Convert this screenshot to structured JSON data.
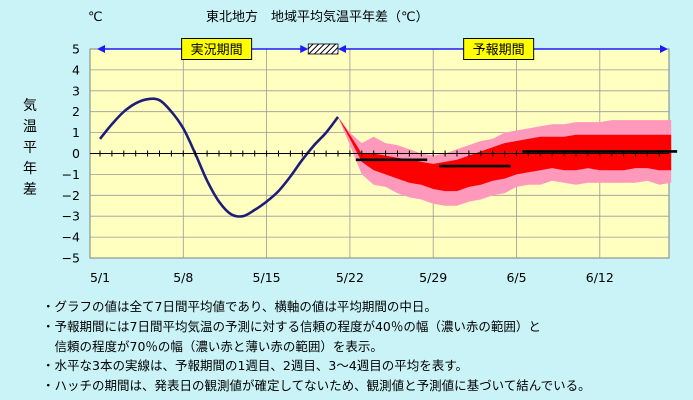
{
  "chart_data": {
    "type": "line",
    "title": "東北地方　地域平均気温平年差（℃）",
    "unit_label": "℃",
    "ylabel": "気温平年差",
    "ylim": [
      -5,
      5
    ],
    "yticks": [
      "5",
      "4",
      "3",
      "2",
      "1",
      "0",
      "−1",
      "−2",
      "−3",
      "−4",
      "−5"
    ],
    "x_range_days": [
      0,
      48
    ],
    "x_tick_labels": [
      {
        "day": 0,
        "label": "5/1"
      },
      {
        "day": 7,
        "label": "5/8"
      },
      {
        "day": 14,
        "label": "5/15"
      },
      {
        "day": 21,
        "label": "5/22"
      },
      {
        "day": 28,
        "label": "5/29"
      },
      {
        "day": 35,
        "label": "6/5"
      },
      {
        "day": 42,
        "label": "6/12"
      }
    ],
    "period_labels": {
      "observed": "実況期間",
      "forecast": "予報期間",
      "observed_range": [
        0,
        17.5
      ],
      "hatch_range": [
        17.5,
        20
      ],
      "forecast_range": [
        20,
        48
      ]
    },
    "observed_series": {
      "name": "実況",
      "points": [
        [
          0,
          0.7
        ],
        [
          1,
          1.4
        ],
        [
          2,
          2.0
        ],
        [
          3,
          2.4
        ],
        [
          4,
          2.6
        ],
        [
          5,
          2.55
        ],
        [
          6,
          2.0
        ],
        [
          7,
          1.2
        ],
        [
          8,
          0.0
        ],
        [
          9,
          -1.3
        ],
        [
          10,
          -2.3
        ],
        [
          11,
          -2.9
        ],
        [
          12,
          -3.0
        ],
        [
          13,
          -2.7
        ],
        [
          14,
          -2.3
        ],
        [
          15,
          -1.8
        ],
        [
          16,
          -1.1
        ],
        [
          17,
          -0.3
        ],
        [
          18,
          0.4
        ],
        [
          19,
          1.0
        ],
        [
          20,
          1.75
        ]
      ]
    },
    "band_70": {
      "name": "70%の幅",
      "points": [
        [
          20,
          1.75,
          1.75
        ],
        [
          21,
          1.0,
          0.4
        ],
        [
          22,
          0.5,
          -1.0
        ],
        [
          23,
          0.8,
          -1.5
        ],
        [
          24,
          0.5,
          -1.6
        ],
        [
          25,
          0.4,
          -1.9
        ],
        [
          26,
          0.2,
          -2.1
        ],
        [
          27,
          0.0,
          -2.2
        ],
        [
          28,
          -0.1,
          -2.4
        ],
        [
          29,
          0.0,
          -2.5
        ],
        [
          30,
          0.2,
          -2.5
        ],
        [
          31,
          0.4,
          -2.3
        ],
        [
          32,
          0.6,
          -2.2
        ],
        [
          33,
          0.7,
          -2.0
        ],
        [
          34,
          1.0,
          -1.9
        ],
        [
          35,
          1.1,
          -1.6
        ],
        [
          36,
          1.2,
          -1.5
        ],
        [
          37,
          1.3,
          -1.5
        ],
        [
          38,
          1.4,
          -1.3
        ],
        [
          39,
          1.4,
          -1.4
        ],
        [
          40,
          1.5,
          -1.5
        ],
        [
          41,
          1.5,
          -1.4
        ],
        [
          42,
          1.5,
          -1.4
        ],
        [
          43,
          1.6,
          -1.4
        ],
        [
          44,
          1.6,
          -1.4
        ],
        [
          45,
          1.6,
          -1.4
        ],
        [
          46,
          1.6,
          -1.3
        ],
        [
          47,
          1.6,
          -1.5
        ],
        [
          48,
          1.6,
          -1.4
        ]
      ]
    },
    "band_40": {
      "name": "40%の幅",
      "points": [
        [
          20,
          1.75,
          1.75
        ],
        [
          21,
          0.9,
          0.7
        ],
        [
          22,
          0.0,
          -0.4
        ],
        [
          23,
          0.0,
          -0.8
        ],
        [
          24,
          -0.1,
          -1.0
        ],
        [
          25,
          -0.2,
          -1.2
        ],
        [
          26,
          -0.3,
          -1.4
        ],
        [
          27,
          -0.4,
          -1.5
        ],
        [
          28,
          -0.5,
          -1.7
        ],
        [
          29,
          -0.4,
          -1.8
        ],
        [
          30,
          -0.3,
          -1.8
        ],
        [
          31,
          -0.1,
          -1.6
        ],
        [
          32,
          0.1,
          -1.5
        ],
        [
          33,
          0.3,
          -1.3
        ],
        [
          34,
          0.5,
          -1.2
        ],
        [
          35,
          0.6,
          -1.0
        ],
        [
          36,
          0.7,
          -0.9
        ],
        [
          37,
          0.8,
          -0.8
        ],
        [
          38,
          0.8,
          -0.7
        ],
        [
          39,
          0.8,
          -0.8
        ],
        [
          40,
          0.9,
          -0.8
        ],
        [
          41,
          0.9,
          -0.7
        ],
        [
          42,
          0.9,
          -0.8
        ],
        [
          43,
          0.9,
          -0.8
        ],
        [
          44,
          0.9,
          -0.8
        ],
        [
          45,
          0.9,
          -0.7
        ],
        [
          46,
          0.9,
          -0.7
        ],
        [
          47,
          0.9,
          -0.8
        ],
        [
          48,
          0.9,
          -0.8
        ]
      ]
    },
    "weekly_means": [
      {
        "name": "1週目",
        "x_from": 21.5,
        "x_to": 27.5,
        "value": -0.3
      },
      {
        "name": "2週目",
        "x_from": 28.5,
        "x_to": 34.5,
        "value": -0.6
      },
      {
        "name": "3〜4週目",
        "x_from": 35.5,
        "x_to": 48.5,
        "value": 0.1
      }
    ],
    "colors": {
      "observed_line": "#1e1e78",
      "band_70": "#ff99bb",
      "band_40": "#ff0000",
      "weekly_line": "#000000",
      "plot_bg": "#ffffc0",
      "arrow": "#1a1aff",
      "tag_bg": "#ffff00"
    }
  },
  "notes": [
    "・グラフの値は全て7日間平均値であり、横軸の値は平均期間の中日。",
    "・予報期間には7日間平均気温の予測に対する信頼の程度が40％の幅（濃い赤の範囲）と",
    "　信頼の程度が70％の幅（濃い赤と薄い赤の範囲）を表示。",
    "・水平な3本の実線は、予報期間の1週目、2週目、3〜4週目の平均を表す。",
    "・ハッチの期間は、発表日の観測値が確定してないため、観測値と予測値に基づいて結んでいる。"
  ]
}
